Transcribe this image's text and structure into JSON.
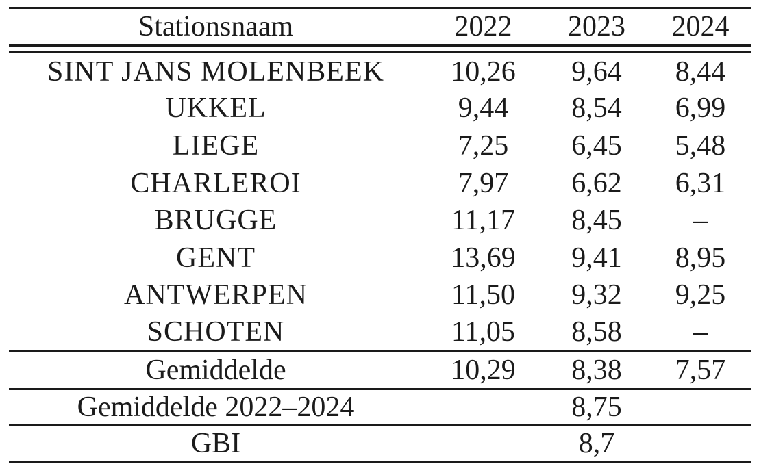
{
  "chart_data": {
    "type": "table",
    "columns": [
      "Stationsnaam",
      "2022",
      "2023",
      "2024"
    ],
    "rows": [
      {
        "name": "SINT JANS MOLENBEEK",
        "values": [
          "10,26",
          "9,64",
          "8,44"
        ]
      },
      {
        "name": "UKKEL",
        "values": [
          "9,44",
          "8,54",
          "6,99"
        ]
      },
      {
        "name": "LIEGE",
        "values": [
          "7,25",
          "6,45",
          "5,48"
        ]
      },
      {
        "name": "CHARLEROI",
        "values": [
          "7,97",
          "6,62",
          "6,31"
        ]
      },
      {
        "name": "BRUGGE",
        "values": [
          "11,17",
          "8,45",
          "–"
        ]
      },
      {
        "name": "GENT",
        "values": [
          "13,69",
          "9,41",
          "8,95"
        ]
      },
      {
        "name": "ANTWERPEN",
        "values": [
          "11,50",
          "9,32",
          "9,25"
        ]
      },
      {
        "name": "SCHOTEN",
        "values": [
          "11,05",
          "8,58",
          "–"
        ]
      }
    ],
    "summary_rows": [
      {
        "label": "Gemiddelde",
        "bold": true,
        "values": [
          "10,29",
          "8,38",
          "7,57"
        ]
      },
      {
        "label": "Gemiddelde 2022–2024",
        "bold": false,
        "value": "8,75"
      },
      {
        "label": "GBI",
        "bold": true,
        "value": "8,7"
      }
    ],
    "missing_value_symbol": "–"
  },
  "colors": {
    "text": "#1b1b1b",
    "rule": "#1a1a1a",
    "background": "#ffffff"
  }
}
